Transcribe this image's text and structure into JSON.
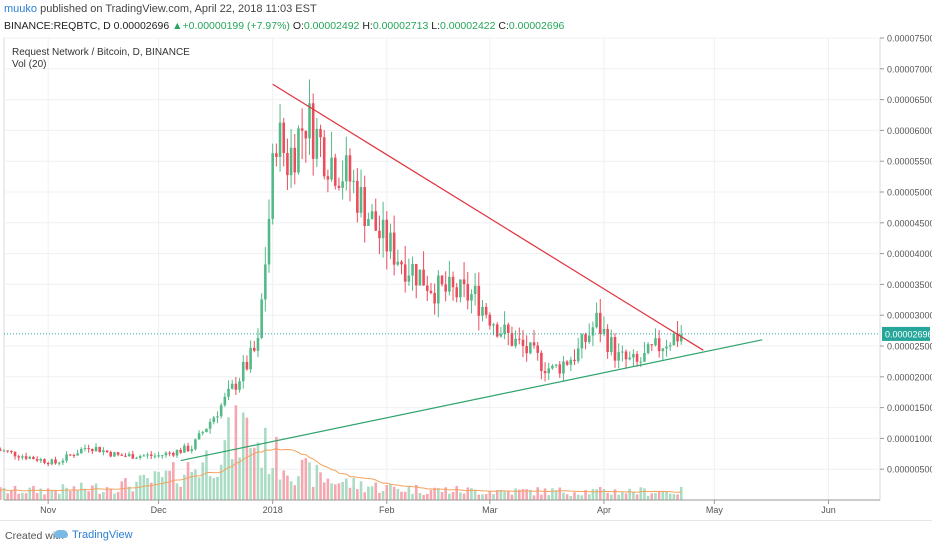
{
  "header": {
    "user": "muuko",
    "published_text": " published on TradingView.com, April 22, 2018 11:03 EST",
    "symbol_line": "BINANCE:REQBTC, D  0.00002696",
    "change_arrow": "▲",
    "change": "+0.00000199 (+7.97%)",
    "o_label": "O:",
    "o_value": "0.00002492",
    "h_label": "H:",
    "h_value": "0.00002713",
    "l_label": "L:",
    "l_value": "0.00002422",
    "c_label": "C:",
    "c_value": "0.00002696"
  },
  "legend": {
    "title": "Request Network / Bitcoin, D, BINANCE",
    "indicator": "Vol (20)"
  },
  "footer": {
    "created_with": "Created with",
    "brand": "TradingView"
  },
  "colors": {
    "up": "#53b987",
    "down": "#eb4d5c",
    "up_volume": "#a9dcc3",
    "down_volume": "#f5a6ae",
    "resistance_line": "#e0323c",
    "support_line": "#2fa36b",
    "vol_ma": "#f5a25d",
    "last_price": "#26a69a",
    "grid": "#eef0f3",
    "brand_blue": "#2a7fd4"
  },
  "chart_data": {
    "type": "candlestick",
    "y_axis": {
      "range": [
        0,
        7.5e-05
      ],
      "tick_labels": [
        "0.00007500",
        "0.00007000",
        "0.00006500",
        "0.00006000",
        "0.00005500",
        "0.00005000",
        "0.00004500",
        "0.00004000",
        "0.00003500",
        "0.00003000",
        "0.00002500",
        "0.00002000",
        "0.00001500",
        "0.00001000",
        "0.00000500"
      ],
      "tick_values": [
        7.5e-05,
        7e-05,
        6.5e-05,
        6e-05,
        5.5e-05,
        5e-05,
        4.5e-05,
        4e-05,
        3.5e-05,
        3e-05,
        2.5e-05,
        2e-05,
        1.5e-05,
        1e-05,
        5e-06
      ]
    },
    "x_axis": {
      "tick_labels": [
        "Nov",
        "Dec",
        "2018",
        "Feb",
        "Mar",
        "Apr",
        "May",
        "Jun"
      ],
      "tick_dates": [
        "2017-11-01",
        "2017-12-01",
        "2018-01-01",
        "2018-02-01",
        "2018-03-01",
        "2018-04-01",
        "2018-05-01",
        "2018-06-01"
      ],
      "range": [
        "2017-10-20",
        "2018-06-15"
      ]
    },
    "last_price": 2.696e-05,
    "last_price_label": "0.00002696",
    "trendlines": [
      {
        "name": "resistance",
        "from": {
          "date": "2018-01-01",
          "value": 6.75e-05
        },
        "to": {
          "date": "2018-04-28",
          "value": 2.43e-05
        }
      },
      {
        "name": "support",
        "from": {
          "date": "2017-12-07",
          "value": 6.4e-06
        },
        "to": {
          "date": "2018-05-14",
          "value": 2.6e-05
        }
      }
    ],
    "price_anchors": [
      {
        "date": "2017-10-18",
        "close": 8.2e-06
      },
      {
        "date": "2017-10-25",
        "close": 7.2e-06
      },
      {
        "date": "2017-11-03",
        "close": 6e-06
      },
      {
        "date": "2017-11-12",
        "close": 8.8e-06
      },
      {
        "date": "2017-11-20",
        "close": 7.2e-06
      },
      {
        "date": "2017-12-01",
        "close": 7.2e-06
      },
      {
        "date": "2017-12-10",
        "close": 8.5e-06
      },
      {
        "date": "2017-12-20",
        "close": 1.7e-05
      },
      {
        "date": "2017-12-28",
        "close": 2.5e-05
      },
      {
        "date": "2018-01-02",
        "close": 6e-05
      },
      {
        "date": "2018-01-05",
        "close": 5.5e-05
      },
      {
        "date": "2018-01-10",
        "close": 6.2e-05
      },
      {
        "date": "2018-01-16",
        "close": 5.6e-05
      },
      {
        "date": "2018-01-22",
        "close": 5.2e-05
      },
      {
        "date": "2018-01-30",
        "close": 4.3e-05
      },
      {
        "date": "2018-02-05",
        "close": 3.9e-05
      },
      {
        "date": "2018-02-15",
        "close": 3.4e-05
      },
      {
        "date": "2018-02-25",
        "close": 3.3e-05
      },
      {
        "date": "2018-03-05",
        "close": 2.7e-05
      },
      {
        "date": "2018-03-18",
        "close": 2.1e-05
      },
      {
        "date": "2018-03-25",
        "close": 2.4e-05
      },
      {
        "date": "2018-03-30",
        "close": 2.9e-05
      },
      {
        "date": "2018-04-05",
        "close": 2.3e-05
      },
      {
        "date": "2018-04-10",
        "close": 2.2e-05
      },
      {
        "date": "2018-04-18",
        "close": 2.6e-05
      },
      {
        "date": "2018-04-22",
        "close": 2.696e-05
      }
    ],
    "volume_note": "Volume bars with 20-period moving average shown in lower pane"
  }
}
